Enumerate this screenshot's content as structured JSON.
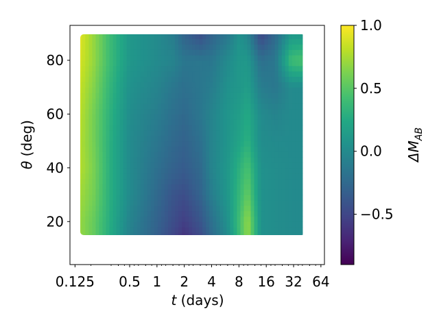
{
  "chart_data": {
    "type": "heatmap",
    "title": "",
    "xlabel": "t (days)",
    "ylabel": "θ (deg)",
    "xscale": "log2",
    "x_ticks": [
      0.125,
      0.5,
      1,
      2,
      4,
      8,
      16,
      32,
      64
    ],
    "x_tick_labels": [
      "0.125",
      "0.5",
      "1",
      "2",
      "4",
      "8",
      "16",
      "32",
      "64"
    ],
    "xlim": [
      0.11,
      70
    ],
    "y_ticks": [
      20,
      40,
      60,
      80
    ],
    "y_tick_labels": [
      "20",
      "40",
      "60",
      "80"
    ],
    "ylim": [
      4,
      93
    ],
    "data_extent": {
      "t": [
        0.125,
        40
      ],
      "theta": [
        8,
        90
      ]
    },
    "colormap": "viridis",
    "colorbar": {
      "label": "ΔM_AB",
      "label_main": "ΔM",
      "label_sub": "AB",
      "range": [
        -0.9,
        1.0
      ],
      "ticks": [
        1.0,
        0.5,
        0.0,
        -0.5
      ],
      "tick_labels": [
        "1.0",
        "0.5",
        "0.0",
        "−0.5"
      ]
    },
    "t_samples": [
      0.125,
      0.2,
      0.3,
      0.5,
      1,
      1.5,
      2,
      3,
      4,
      6,
      8,
      10,
      14,
      20,
      30,
      40
    ],
    "theta_samples": [
      8,
      20,
      30,
      40,
      50,
      60,
      70,
      80,
      90
    ],
    "values": [
      [
        0.75,
        0.55,
        0.25,
        -0.1,
        -0.35,
        -0.55,
        -0.7,
        -0.55,
        -0.3,
        -0.05,
        0.35,
        0.7,
        0.05,
        0.02,
        0.0,
        0.0
      ],
      [
        0.75,
        0.55,
        0.28,
        -0.05,
        -0.3,
        -0.45,
        -0.55,
        -0.4,
        -0.2,
        0.05,
        0.4,
        0.7,
        0.05,
        0.02,
        0.0,
        0.0
      ],
      [
        0.78,
        0.6,
        0.3,
        0.0,
        -0.25,
        -0.4,
        -0.45,
        -0.3,
        -0.1,
        0.1,
        0.35,
        0.55,
        0.05,
        0.02,
        0.0,
        0.0
      ],
      [
        0.85,
        0.62,
        0.3,
        0.0,
        -0.2,
        -0.3,
        -0.35,
        -0.25,
        -0.05,
        0.1,
        0.3,
        0.45,
        0.05,
        0.02,
        0.0,
        0.0
      ],
      [
        0.85,
        0.6,
        0.3,
        0.0,
        -0.15,
        -0.25,
        -0.3,
        -0.2,
        -0.05,
        0.08,
        0.2,
        0.3,
        0.02,
        0.0,
        0.0,
        0.0
      ],
      [
        0.88,
        0.6,
        0.32,
        0.02,
        -0.1,
        -0.2,
        -0.25,
        -0.15,
        -0.05,
        0.08,
        0.15,
        0.25,
        0.0,
        -0.05,
        0.0,
        0.0
      ],
      [
        0.9,
        0.65,
        0.35,
        0.05,
        -0.05,
        -0.15,
        -0.2,
        -0.15,
        -0.1,
        0.05,
        0.1,
        0.15,
        -0.1,
        -0.15,
        0.0,
        0.0
      ],
      [
        0.95,
        0.7,
        0.4,
        0.1,
        0.0,
        -0.05,
        -0.15,
        -0.15,
        -0.15,
        0.0,
        0.1,
        0.1,
        -0.2,
        -0.15,
        0.4,
        0.45
      ],
      [
        1.0,
        0.7,
        0.4,
        0.1,
        0.0,
        -0.1,
        -0.3,
        -0.45,
        -0.3,
        -0.15,
        0.05,
        -0.05,
        -0.5,
        -0.25,
        0.1,
        0.1
      ]
    ]
  }
}
